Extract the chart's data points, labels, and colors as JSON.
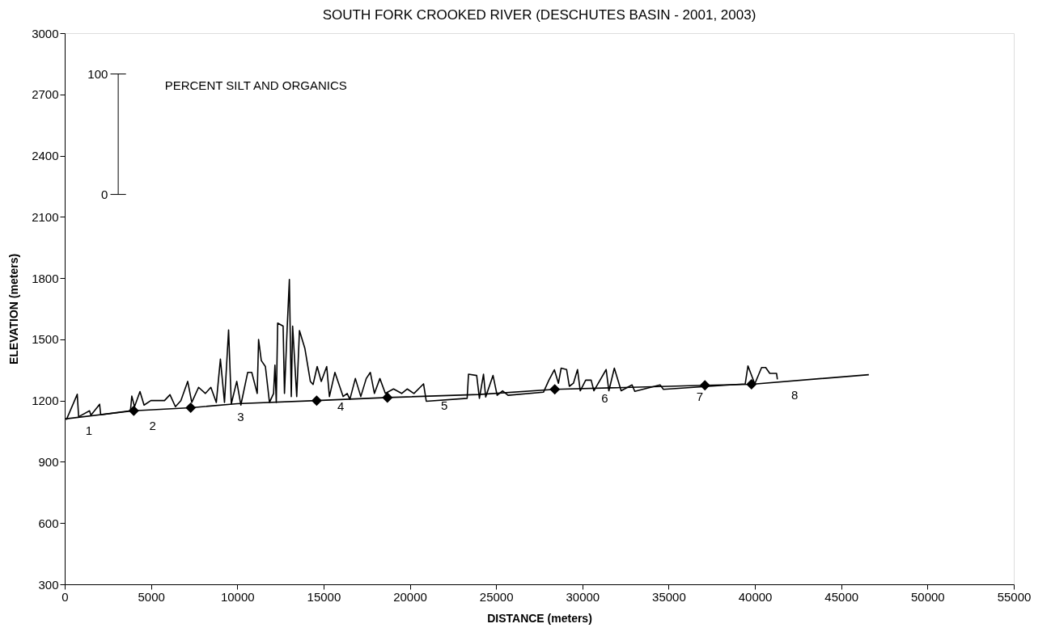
{
  "chart_data": {
    "type": "line",
    "title": "SOUTH FORK CROOKED RIVER (DESCHUTES BASIN - 2001, 2003)",
    "xlabel": "DISTANCE (meters)",
    "ylabel": "ELEVATION (meters)",
    "xlim": [
      0,
      55000
    ],
    "xticks": [
      0,
      5000,
      10000,
      15000,
      20000,
      25000,
      30000,
      35000,
      40000,
      45000,
      50000,
      55000
    ],
    "ylim": [
      300,
      3000
    ],
    "yticks": [
      300,
      600,
      900,
      1200,
      1500,
      1800,
      2100,
      2400,
      2700,
      3000
    ],
    "grid": false,
    "series": [
      {
        "color": "#000000",
        "marker": "none",
        "x": [
          0,
          4000,
          7300,
          10000,
          14600,
          18700,
          24000,
          28400,
          37100,
          39800,
          46600
        ],
        "values": [
          1110,
          1150,
          1165,
          1185,
          1200,
          1215,
          1230,
          1255,
          1275,
          1280,
          1327
        ]
      },
      {
        "color": "#000000",
        "marker": "none",
        "x": [
          95,
          726,
          806,
          1438,
          1517,
          2022,
          2085,
          3808,
          3887,
          4045,
          4361,
          4598,
          4993,
          5783,
          6100,
          6415,
          6731,
          7126,
          7363,
          7758,
          8153,
          8469,
          8785,
          9022,
          9259,
          9496,
          9654,
          9970,
          10207,
          10602,
          10839,
          11155,
          11234,
          11392,
          11629,
          11866,
          12103,
          12182,
          12261,
          12340,
          12656,
          12735,
          12893,
          13019,
          13129,
          13208,
          13445,
          13603,
          13919,
          14235,
          14393,
          14630,
          14867,
          15183,
          15341,
          15657,
          16131,
          16368,
          16526,
          16842,
          17158,
          17474,
          17711,
          17948,
          18264,
          18580,
          19054,
          19528,
          19844,
          20239,
          20794,
          20952,
          23321,
          23400,
          23874,
          24032,
          24269,
          24395,
          24822,
          25059,
          25375,
          25691,
          27743,
          28059,
          28375,
          28612,
          28770,
          29086,
          29244,
          29481,
          29718,
          29876,
          30192,
          30508,
          30666,
          31377,
          31535,
          31851,
          32246,
          32878,
          33036,
          34505,
          34695,
          39437,
          39595,
          39990,
          40385,
          40622,
          40859,
          41254,
          41300
        ],
        "values": [
          1106,
          1231,
          1121,
          1150,
          1128,
          1182,
          1131,
          1150,
          1222,
          1170,
          1244,
          1178,
          1200,
          1200,
          1229,
          1170,
          1200,
          1294,
          1191,
          1265,
          1235,
          1265,
          1191,
          1403,
          1191,
          1546,
          1184,
          1294,
          1178,
          1338,
          1338,
          1235,
          1499,
          1396,
          1367,
          1191,
          1235,
          1374,
          1191,
          1580,
          1565,
          1235,
          1558,
          1793,
          1220,
          1565,
          1220,
          1543,
          1455,
          1294,
          1279,
          1367,
          1294,
          1367,
          1220,
          1338,
          1220,
          1235,
          1206,
          1308,
          1220,
          1308,
          1338,
          1235,
          1308,
          1235,
          1257,
          1235,
          1257,
          1235,
          1282,
          1197,
          1211,
          1329,
          1323,
          1211,
          1329,
          1218,
          1323,
          1226,
          1248,
          1226,
          1241,
          1300,
          1351,
          1285,
          1359,
          1352,
          1270,
          1285,
          1352,
          1248,
          1300,
          1300,
          1248,
          1352,
          1248,
          1359,
          1248,
          1277,
          1245,
          1277,
          1255,
          1282,
          1370,
          1282,
          1362,
          1362,
          1333,
          1333,
          1304
        ]
      },
      {
        "type": "scatter",
        "color": "#000000",
        "marker": "diamond",
        "x": [
          4000,
          7300,
          14600,
          18700,
          28400,
          37100,
          39800
        ],
        "values": [
          1150,
          1165,
          1200,
          1215,
          1255,
          1275,
          1280
        ]
      }
    ],
    "annotations": [
      "1",
      "2",
      "3",
      "4",
      "5",
      "6",
      "7",
      "8",
      "100",
      "0",
      "PERCENT SILT AND ORGANICS"
    ]
  }
}
